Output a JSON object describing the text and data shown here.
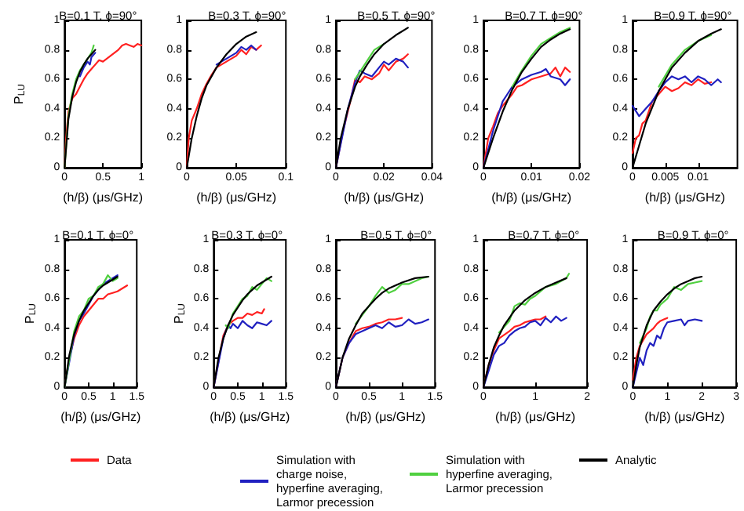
{
  "chart_data": [
    {
      "type": "line",
      "title": "B=0.1 T, ϕ=90°",
      "xlabel": "(h/β) (μs/GHz)",
      "ylabel": "P$_{LU}$",
      "xlim": [
        0,
        1
      ],
      "xticks": [
        0,
        0.5,
        1
      ],
      "ylim": [
        0,
        1
      ],
      "yticks": [
        0,
        0.2,
        0.4,
        0.6,
        0.8,
        1
      ],
      "marker": "none",
      "line_style": "solid",
      "series": [
        {
          "color": "#ff2020",
          "x": [
            0,
            0.02,
            0.05,
            0.1,
            0.15,
            0.2,
            0.25,
            0.3,
            0.35,
            0.4,
            0.45,
            0.5,
            0.55,
            0.6,
            0.65,
            0.7,
            0.75,
            0.8,
            0.85,
            0.9,
            0.95,
            1
          ],
          "values": [
            0,
            0.2,
            0.38,
            0.47,
            0.5,
            0.55,
            0.6,
            0.64,
            0.67,
            0.7,
            0.73,
            0.72,
            0.74,
            0.76,
            0.78,
            0.8,
            0.83,
            0.84,
            0.83,
            0.82,
            0.84,
            0.83
          ]
        },
        {
          "color": "#2020c0",
          "x": [
            0.2,
            0.25,
            0.3,
            0.33,
            0.35,
            0.4
          ],
          "values": [
            0.62,
            0.68,
            0.72,
            0.7,
            0.75,
            0.78
          ]
        },
        {
          "color": "#50d040",
          "x": [
            0,
            0.05,
            0.1,
            0.15,
            0.2,
            0.25,
            0.3,
            0.35,
            0.38
          ],
          "values": [
            0,
            0.35,
            0.5,
            0.6,
            0.66,
            0.7,
            0.74,
            0.78,
            0.83
          ]
        },
        {
          "color": "#000000",
          "x": [
            0,
            0.05,
            0.1,
            0.15,
            0.2,
            0.25,
            0.3,
            0.35,
            0.4
          ],
          "values": [
            0,
            0.33,
            0.48,
            0.58,
            0.65,
            0.7,
            0.74,
            0.77,
            0.8
          ]
        }
      ]
    },
    {
      "type": "line",
      "title": "B=0.3 T, ϕ=90°",
      "xlabel": "(h/β) (μs/GHz)",
      "xlim": [
        0,
        0.1
      ],
      "xticks": [
        0,
        0.05,
        0.1
      ],
      "ylim": [
        0,
        1
      ],
      "yticks": [
        0,
        0.2,
        0.4,
        0.6,
        0.8,
        1
      ],
      "marker": "none",
      "line_style": "solid",
      "series": [
        {
          "color": "#ff2020",
          "x": [
            0,
            0.002,
            0.005,
            0.01,
            0.015,
            0.02,
            0.025,
            0.03,
            0.035,
            0.04,
            0.045,
            0.05,
            0.055,
            0.06,
            0.065,
            0.07,
            0.075
          ],
          "values": [
            0,
            0.2,
            0.32,
            0.4,
            0.5,
            0.57,
            0.63,
            0.68,
            0.7,
            0.72,
            0.74,
            0.76,
            0.8,
            0.77,
            0.82,
            0.8,
            0.83
          ]
        },
        {
          "color": "#2020c0",
          "x": [
            0.03,
            0.04,
            0.05,
            0.055,
            0.06,
            0.065,
            0.07
          ],
          "values": [
            0.7,
            0.74,
            0.78,
            0.82,
            0.8,
            0.83,
            0.8
          ]
        },
        {
          "color": "#000000",
          "x": [
            0,
            0.005,
            0.01,
            0.015,
            0.02,
            0.03,
            0.04,
            0.05,
            0.06,
            0.07
          ],
          "values": [
            0,
            0.2,
            0.35,
            0.47,
            0.56,
            0.68,
            0.77,
            0.84,
            0.89,
            0.92
          ]
        }
      ]
    },
    {
      "type": "line",
      "title": "B=0.5 T, ϕ=90°",
      "xlabel": "(h/β) (μs/GHz)",
      "xlim": [
        0,
        0.04
      ],
      "xticks": [
        0,
        0.02,
        0.04
      ],
      "ylim": [
        0,
        1
      ],
      "yticks": [
        0,
        0.2,
        0.4,
        0.6,
        0.8,
        1
      ],
      "marker": "none",
      "line_style": "solid",
      "series": [
        {
          "color": "#ff2020",
          "x": [
            0,
            0.003,
            0.006,
            0.008,
            0.01,
            0.012,
            0.015,
            0.018,
            0.02,
            0.022,
            0.025,
            0.028,
            0.03
          ],
          "values": [
            0,
            0.25,
            0.45,
            0.6,
            0.58,
            0.62,
            0.6,
            0.64,
            0.7,
            0.66,
            0.72,
            0.74,
            0.77
          ]
        },
        {
          "color": "#2020c0",
          "x": [
            0,
            0.005,
            0.008,
            0.01,
            0.012,
            0.015,
            0.018,
            0.02,
            0.022,
            0.025,
            0.028,
            0.03
          ],
          "values": [
            0,
            0.4,
            0.58,
            0.66,
            0.64,
            0.62,
            0.68,
            0.72,
            0.7,
            0.74,
            0.72,
            0.68
          ]
        },
        {
          "color": "#50d040",
          "x": [
            0.008,
            0.012,
            0.016,
            0.02
          ],
          "values": [
            0.6,
            0.7,
            0.8,
            0.84
          ]
        },
        {
          "color": "#000000",
          "x": [
            0,
            0.002,
            0.005,
            0.008,
            0.01,
            0.013,
            0.016,
            0.02,
            0.025,
            0.03
          ],
          "values": [
            0,
            0.2,
            0.4,
            0.55,
            0.62,
            0.7,
            0.77,
            0.84,
            0.9,
            0.95
          ]
        }
      ]
    },
    {
      "type": "line",
      "title": "B=0.7 T, ϕ=90°",
      "xlabel": "(h/β) (μs/GHz)",
      "xlim": [
        0,
        0.02
      ],
      "xticks": [
        0,
        0.01,
        0.02
      ],
      "ylim": [
        0,
        1
      ],
      "yticks": [
        0,
        0.2,
        0.4,
        0.6,
        0.8,
        1
      ],
      "marker": "none",
      "line_style": "solid",
      "series": [
        {
          "color": "#ff2020",
          "x": [
            0,
            0.001,
            0.002,
            0.003,
            0.004,
            0.006,
            0.007,
            0.008,
            0.01,
            0.012,
            0.014,
            0.015,
            0.016,
            0.017,
            0.018
          ],
          "values": [
            0,
            0.2,
            0.28,
            0.37,
            0.42,
            0.5,
            0.55,
            0.56,
            0.6,
            0.62,
            0.64,
            0.68,
            0.62,
            0.68,
            0.65
          ]
        },
        {
          "color": "#2020c0",
          "x": [
            0,
            0.002,
            0.004,
            0.005,
            0.006,
            0.008,
            0.01,
            0.012,
            0.013,
            0.014,
            0.016,
            0.017,
            0.018
          ],
          "values": [
            0,
            0.25,
            0.45,
            0.5,
            0.55,
            0.6,
            0.63,
            0.65,
            0.67,
            0.62,
            0.6,
            0.56,
            0.6
          ]
        },
        {
          "color": "#50d040",
          "x": [
            0.006,
            0.008,
            0.01,
            0.012,
            0.014,
            0.016,
            0.018
          ],
          "values": [
            0.55,
            0.66,
            0.76,
            0.84,
            0.88,
            0.92,
            0.95
          ]
        },
        {
          "color": "#000000",
          "x": [
            0,
            0.002,
            0.004,
            0.006,
            0.008,
            0.01,
            0.012,
            0.014,
            0.016,
            0.018
          ],
          "values": [
            0,
            0.2,
            0.38,
            0.53,
            0.65,
            0.74,
            0.82,
            0.87,
            0.91,
            0.94
          ]
        }
      ]
    },
    {
      "type": "line",
      "title": "B=0.9 T, ϕ=90°",
      "xlabel": "(h/β) (μs/GHz)",
      "xlim": [
        0,
        0.016
      ],
      "xticks": [
        0,
        0.005,
        0.01
      ],
      "ylim": [
        0,
        1
      ],
      "yticks": [
        0,
        0.2,
        0.4,
        0.6,
        0.8,
        1
      ],
      "marker": "none",
      "line_style": "solid",
      "series": [
        {
          "color": "#ff2020",
          "x": [
            0,
            0.0005,
            0.001,
            0.0015,
            0.002,
            0.003,
            0.004,
            0.005,
            0.006,
            0.007,
            0.008,
            0.009,
            0.01,
            0.011,
            0.012
          ],
          "values": [
            0.1,
            0.2,
            0.22,
            0.3,
            0.32,
            0.45,
            0.5,
            0.55,
            0.52,
            0.54,
            0.58,
            0.56,
            0.6,
            0.57,
            0.58
          ]
        },
        {
          "color": "#2020c0",
          "x": [
            0,
            0.001,
            0.002,
            0.003,
            0.004,
            0.005,
            0.006,
            0.007,
            0.008,
            0.009,
            0.01,
            0.011,
            0.012,
            0.013,
            0.0135
          ],
          "values": [
            0.42,
            0.35,
            0.4,
            0.45,
            0.52,
            0.58,
            0.62,
            0.6,
            0.62,
            0.58,
            0.62,
            0.6,
            0.56,
            0.6,
            0.58
          ]
        },
        {
          "color": "#50d040",
          "x": [
            0.004,
            0.006,
            0.008,
            0.01,
            0.012
          ],
          "values": [
            0.55,
            0.7,
            0.8,
            0.86,
            0.9
          ]
        },
        {
          "color": "#000000",
          "x": [
            0,
            0.001,
            0.002,
            0.004,
            0.005,
            0.006,
            0.008,
            0.01,
            0.012,
            0.0135
          ],
          "values": [
            0,
            0.15,
            0.3,
            0.52,
            0.6,
            0.68,
            0.78,
            0.86,
            0.91,
            0.94
          ]
        }
      ]
    },
    {
      "type": "line",
      "title": "B=0.1 T, ϕ=0°",
      "xlabel": "(h/β) (μs/GHz)",
      "ylabel": "P$_{LU}$",
      "xlim": [
        0,
        1.5
      ],
      "xticks": [
        0,
        0.5,
        1,
        1.5
      ],
      "ylim": [
        0,
        1
      ],
      "yticks": [
        0,
        0.2,
        0.4,
        0.6,
        0.8,
        1
      ],
      "marker": "none",
      "line_style": "solid",
      "series": [
        {
          "color": "#ff2020",
          "x": [
            0,
            0.1,
            0.2,
            0.3,
            0.4,
            0.5,
            0.6,
            0.7,
            0.8,
            0.9,
            1,
            1.1,
            1.2,
            1.3
          ],
          "values": [
            0,
            0.2,
            0.33,
            0.42,
            0.48,
            0.52,
            0.56,
            0.6,
            0.6,
            0.63,
            0.64,
            0.65,
            0.67,
            0.69
          ]
        },
        {
          "color": "#2020c0",
          "x": [
            0,
            0.2,
            0.3,
            0.4,
            0.5,
            0.6,
            0.7,
            0.8,
            0.9,
            1,
            1.1
          ],
          "values": [
            0,
            0.35,
            0.45,
            0.5,
            0.56,
            0.62,
            0.66,
            0.7,
            0.72,
            0.74,
            0.76
          ]
        },
        {
          "color": "#50d040",
          "x": [
            0,
            0.2,
            0.3,
            0.4,
            0.5,
            0.6,
            0.7,
            0.8,
            0.9,
            1,
            1.1
          ],
          "values": [
            0,
            0.38,
            0.48,
            0.52,
            0.6,
            0.62,
            0.68,
            0.7,
            0.76,
            0.72,
            0.74
          ]
        },
        {
          "color": "#000000",
          "x": [
            0,
            0.1,
            0.2,
            0.3,
            0.4,
            0.5,
            0.6,
            0.7,
            0.8,
            0.9,
            1,
            1.1
          ],
          "values": [
            0,
            0.22,
            0.36,
            0.45,
            0.52,
            0.57,
            0.62,
            0.66,
            0.69,
            0.71,
            0.73,
            0.75
          ]
        }
      ]
    },
    {
      "type": "line",
      "title": "B=0.3 T, ϕ=0°",
      "xlabel": "(h/β) (μs/GHz)",
      "ylabel": "P$_{LU}$",
      "xlim": [
        0,
        1.5
      ],
      "xticks": [
        0,
        0.5,
        1,
        1.5
      ],
      "ylim": [
        0,
        1
      ],
      "yticks": [
        0,
        0.2,
        0.4,
        0.6,
        0.8,
        1
      ],
      "marker": "none",
      "line_style": "solid",
      "series": [
        {
          "color": "#ff2020",
          "x": [
            0,
            0.2,
            0.3,
            0.4,
            0.5,
            0.6,
            0.7,
            0.8,
            0.9,
            1,
            1.05
          ],
          "values": [
            0,
            0.35,
            0.42,
            0.45,
            0.47,
            0.47,
            0.5,
            0.49,
            0.51,
            0.5,
            0.53
          ]
        },
        {
          "color": "#2020c0",
          "x": [
            0,
            0.2,
            0.25,
            0.3,
            0.35,
            0.4,
            0.5,
            0.6,
            0.7,
            0.8,
            0.9,
            1,
            1.1,
            1.2
          ],
          "values": [
            0,
            0.33,
            0.38,
            0.42,
            0.4,
            0.43,
            0.4,
            0.45,
            0.42,
            0.4,
            0.44,
            0.43,
            0.42,
            0.45
          ]
        },
        {
          "color": "#50d040",
          "x": [
            0.25,
            0.3,
            0.4,
            0.5,
            0.6,
            0.7,
            0.8,
            0.9,
            1,
            1.1,
            1.2
          ],
          "values": [
            0.42,
            0.4,
            0.5,
            0.55,
            0.6,
            0.62,
            0.68,
            0.66,
            0.7,
            0.74,
            0.72
          ]
        },
        {
          "color": "#000000",
          "x": [
            0,
            0.1,
            0.2,
            0.3,
            0.4,
            0.5,
            0.6,
            0.7,
            0.8,
            0.9,
            1,
            1.1,
            1.2
          ],
          "values": [
            0,
            0.2,
            0.33,
            0.42,
            0.49,
            0.54,
            0.59,
            0.63,
            0.66,
            0.69,
            0.71,
            0.73,
            0.75
          ]
        }
      ]
    },
    {
      "type": "line",
      "title": "B=0.5 T, ϕ=0°",
      "xlabel": "(h/β) (μs/GHz)",
      "xlim": [
        0,
        1.5
      ],
      "xticks": [
        0,
        0.5,
        1,
        1.5
      ],
      "ylim": [
        0,
        1
      ],
      "yticks": [
        0,
        0.2,
        0.4,
        0.6,
        0.8,
        1
      ],
      "marker": "none",
      "line_style": "solid",
      "series": [
        {
          "color": "#ff2020",
          "x": [
            0,
            0.1,
            0.2,
            0.3,
            0.4,
            0.5,
            0.6,
            0.7,
            0.8,
            0.9,
            1
          ],
          "values": [
            0,
            0.2,
            0.3,
            0.38,
            0.4,
            0.41,
            0.43,
            0.44,
            0.46,
            0.46,
            0.47
          ]
        },
        {
          "color": "#2020c0",
          "x": [
            0,
            0.1,
            0.2,
            0.3,
            0.4,
            0.5,
            0.6,
            0.7,
            0.8,
            0.9,
            1,
            1.1,
            1.2,
            1.3,
            1.4
          ],
          "values": [
            0,
            0.2,
            0.3,
            0.36,
            0.38,
            0.4,
            0.42,
            0.4,
            0.44,
            0.41,
            0.42,
            0.46,
            0.43,
            0.44,
            0.46
          ]
        },
        {
          "color": "#50d040",
          "x": [
            0.3,
            0.5,
            0.6,
            0.7,
            0.8,
            0.9,
            1,
            1.1,
            1.2,
            1.3,
            1.4
          ],
          "values": [
            0.43,
            0.55,
            0.62,
            0.68,
            0.64,
            0.66,
            0.7,
            0.7,
            0.72,
            0.74,
            0.75
          ]
        },
        {
          "color": "#000000",
          "x": [
            0,
            0.1,
            0.2,
            0.3,
            0.4,
            0.5,
            0.6,
            0.7,
            0.8,
            1,
            1.2,
            1.4
          ],
          "values": [
            0,
            0.2,
            0.33,
            0.42,
            0.5,
            0.55,
            0.6,
            0.64,
            0.67,
            0.71,
            0.74,
            0.75
          ]
        }
      ]
    },
    {
      "type": "line",
      "title": "B=0.7 T, ϕ=0°",
      "xlabel": "(h/β) (μs/GHz)",
      "xlim": [
        0,
        2
      ],
      "xticks": [
        0,
        1,
        2
      ],
      "ylim": [
        0,
        1
      ],
      "yticks": [
        0,
        0.2,
        0.4,
        0.6,
        0.8,
        1
      ],
      "marker": "none",
      "line_style": "solid",
      "series": [
        {
          "color": "#ff2020",
          "x": [
            0,
            0.1,
            0.2,
            0.3,
            0.5,
            0.6,
            0.7,
            0.8,
            0.9,
            1,
            1.1,
            1.2
          ],
          "values": [
            0,
            0.15,
            0.25,
            0.33,
            0.38,
            0.41,
            0.42,
            0.44,
            0.45,
            0.46,
            0.46,
            0.48
          ]
        },
        {
          "color": "#2020c0",
          "x": [
            0,
            0.2,
            0.3,
            0.4,
            0.5,
            0.6,
            0.7,
            0.8,
            0.9,
            1,
            1.1,
            1.2,
            1.3,
            1.4,
            1.5,
            1.6
          ],
          "values": [
            0,
            0.22,
            0.28,
            0.3,
            0.35,
            0.38,
            0.4,
            0.41,
            0.44,
            0.45,
            0.42,
            0.47,
            0.44,
            0.48,
            0.45,
            0.47
          ]
        },
        {
          "color": "#50d040",
          "x": [
            0.3,
            0.5,
            0.6,
            0.7,
            0.8,
            0.9,
            1,
            1.2,
            1.4,
            1.6,
            1.65
          ],
          "values": [
            0.37,
            0.45,
            0.55,
            0.57,
            0.56,
            0.6,
            0.62,
            0.68,
            0.7,
            0.74,
            0.77
          ]
        },
        {
          "color": "#000000",
          "x": [
            0,
            0.1,
            0.2,
            0.3,
            0.4,
            0.6,
            0.8,
            1,
            1.2,
            1.4,
            1.6
          ],
          "values": [
            0,
            0.15,
            0.27,
            0.35,
            0.42,
            0.52,
            0.59,
            0.64,
            0.68,
            0.71,
            0.74
          ]
        }
      ]
    },
    {
      "type": "line",
      "title": "B=0.9 T, ϕ=0°",
      "xlabel": "(h/β) (μs/GHz)",
      "xlim": [
        0,
        3
      ],
      "xticks": [
        0,
        1,
        2,
        3
      ],
      "ylim": [
        0,
        1
      ],
      "yticks": [
        0,
        0.2,
        0.4,
        0.6,
        0.8,
        1
      ],
      "legend": "bottom",
      "marker": "none",
      "line_style": "solid",
      "series": [
        {
          "name": "Data",
          "color": "#ff2020",
          "x": [
            0,
            0.1,
            0.2,
            0.3,
            0.4,
            0.5,
            0.6,
            0.7,
            0.8,
            0.9,
            1
          ],
          "values": [
            0.05,
            0.2,
            0.28,
            0.32,
            0.36,
            0.38,
            0.4,
            0.43,
            0.45,
            0.46,
            0.47
          ]
        },
        {
          "name": "Simulation with charge noise, hyperfine averaging, Larmor precession",
          "color": "#2020c0",
          "x": [
            0,
            0.1,
            0.2,
            0.3,
            0.4,
            0.5,
            0.6,
            0.7,
            0.8,
            0.9,
            1,
            1.2,
            1.4,
            1.5,
            1.6,
            1.8,
            2
          ],
          "values": [
            0,
            0.1,
            0.2,
            0.15,
            0.25,
            0.3,
            0.28,
            0.35,
            0.33,
            0.4,
            0.44,
            0.45,
            0.46,
            0.42,
            0.45,
            0.46,
            0.45
          ]
        },
        {
          "name": "Simulation with hyperfine averaging, Larmor precession",
          "color": "#50d040",
          "x": [
            0.2,
            0.4,
            0.5,
            0.6,
            0.7,
            0.8,
            1,
            1.2,
            1.4,
            1.6,
            1.8,
            2
          ],
          "values": [
            0.3,
            0.4,
            0.48,
            0.52,
            0.52,
            0.56,
            0.6,
            0.68,
            0.66,
            0.7,
            0.71,
            0.72
          ]
        },
        {
          "name": "Analytic",
          "color": "#000000",
          "x": [
            0,
            0.1,
            0.2,
            0.4,
            0.6,
            0.8,
            1,
            1.2,
            1.4,
            1.6,
            1.8,
            2
          ],
          "values": [
            0,
            0.15,
            0.27,
            0.42,
            0.52,
            0.58,
            0.63,
            0.67,
            0.7,
            0.72,
            0.74,
            0.75
          ]
        }
      ]
    }
  ]
}
